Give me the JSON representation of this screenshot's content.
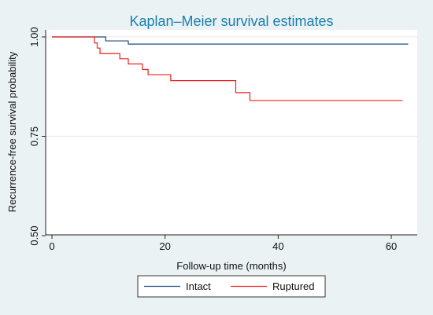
{
  "chart_data": {
    "type": "line",
    "step": true,
    "title": "Kaplan–Meier survival estimates",
    "xlabel": "Follow-up time (months)",
    "ylabel": "Recurrence-free survival probability",
    "xlim": [
      0,
      63
    ],
    "ylim": [
      0.5,
      1.0
    ],
    "x_ticks": [
      0,
      20,
      40,
      60
    ],
    "y_ticks": [
      0.5,
      0.75,
      1.0
    ],
    "y_tick_labels": [
      "0.50",
      "0.75",
      "1.00"
    ],
    "grid": true,
    "legend_position": "bottom",
    "series": [
      {
        "name": "Intact",
        "color": "#1f4e79",
        "points": [
          [
            0,
            1.0
          ],
          [
            9.5,
            1.0
          ],
          [
            9.5,
            0.99
          ],
          [
            13.5,
            0.99
          ],
          [
            13.5,
            0.982
          ],
          [
            63,
            0.982
          ]
        ]
      },
      {
        "name": "Ruptured",
        "color": "#e8221f",
        "points": [
          [
            0,
            1.0
          ],
          [
            7.5,
            1.0
          ],
          [
            7.5,
            0.985
          ],
          [
            8.0,
            0.985
          ],
          [
            8.0,
            0.972
          ],
          [
            8.5,
            0.972
          ],
          [
            8.5,
            0.958
          ],
          [
            12,
            0.958
          ],
          [
            12,
            0.945
          ],
          [
            13.5,
            0.945
          ],
          [
            13.5,
            0.932
          ],
          [
            16,
            0.932
          ],
          [
            16,
            0.918
          ],
          [
            17,
            0.918
          ],
          [
            17,
            0.905
          ],
          [
            21,
            0.905
          ],
          [
            21,
            0.89
          ],
          [
            32.5,
            0.89
          ],
          [
            32.5,
            0.86
          ],
          [
            35,
            0.86
          ],
          [
            35,
            0.84
          ],
          [
            62,
            0.84
          ]
        ]
      }
    ]
  }
}
